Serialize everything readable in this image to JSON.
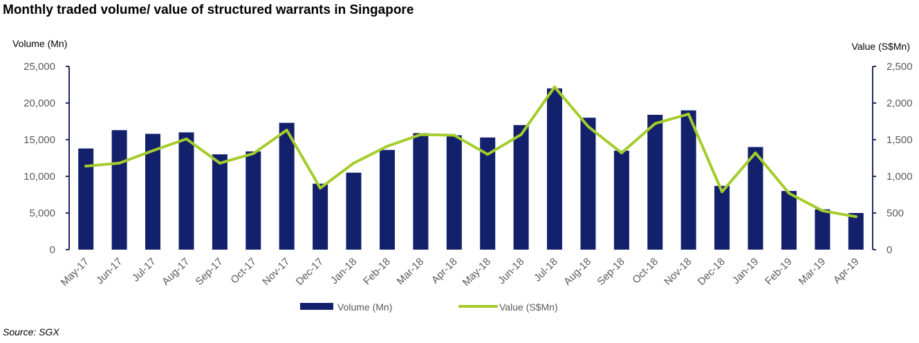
{
  "title": "Monthly traded volume/ value of structured warrants in Singapore",
  "source": "Source: SGX",
  "colors": {
    "bar": "#13206b",
    "line": "#a4cc2c",
    "axis": "#1f2a60",
    "text": "#595959"
  },
  "chart_data": {
    "type": "bar",
    "categories": [
      "May-17",
      "Jun-17",
      "Jul-17",
      "Aug-17",
      "Sep-17",
      "Oct-17",
      "Nov-17",
      "Dec-17",
      "Jan-18",
      "Feb-18",
      "Mar-18",
      "Apr-18",
      "May-18",
      "Jun-18",
      "Jul-18",
      "Aug-18",
      "Sep-18",
      "Oct-18",
      "Nov-18",
      "Dec-18",
      "Jan-19",
      "Feb-19",
      "Mar-19",
      "Apr-19"
    ],
    "series": [
      {
        "name": "Volume (Mn)",
        "type": "bar",
        "axis": "left",
        "values": [
          13800,
          16300,
          15800,
          16000,
          13000,
          13400,
          17300,
          9000,
          10500,
          13600,
          15900,
          15600,
          15300,
          17000,
          22000,
          18000,
          13500,
          18400,
          19000,
          8700,
          14000,
          8000,
          5500,
          5000
        ]
      },
      {
        "name": "Value (S$Mn)",
        "type": "line",
        "axis": "right",
        "values": [
          1140,
          1180,
          1350,
          1510,
          1180,
          1310,
          1630,
          840,
          1180,
          1410,
          1570,
          1560,
          1300,
          1570,
          2220,
          1680,
          1320,
          1720,
          1850,
          790,
          1320,
          770,
          530,
          450
        ]
      }
    ],
    "ylabel_left": "Volume (Mn)",
    "ylabel_right": "Value (S$Mn)",
    "ylim_left": [
      0,
      25000
    ],
    "ylim_right": [
      0,
      2500
    ],
    "yticks_left": [
      "0",
      "5,000",
      "10,000",
      "15,000",
      "20,000",
      "25,000"
    ],
    "yticks_right": [
      "0",
      "500",
      "1,000",
      "1,500",
      "2,000",
      "2,500"
    ],
    "grid": false,
    "legend_position": "bottom"
  }
}
